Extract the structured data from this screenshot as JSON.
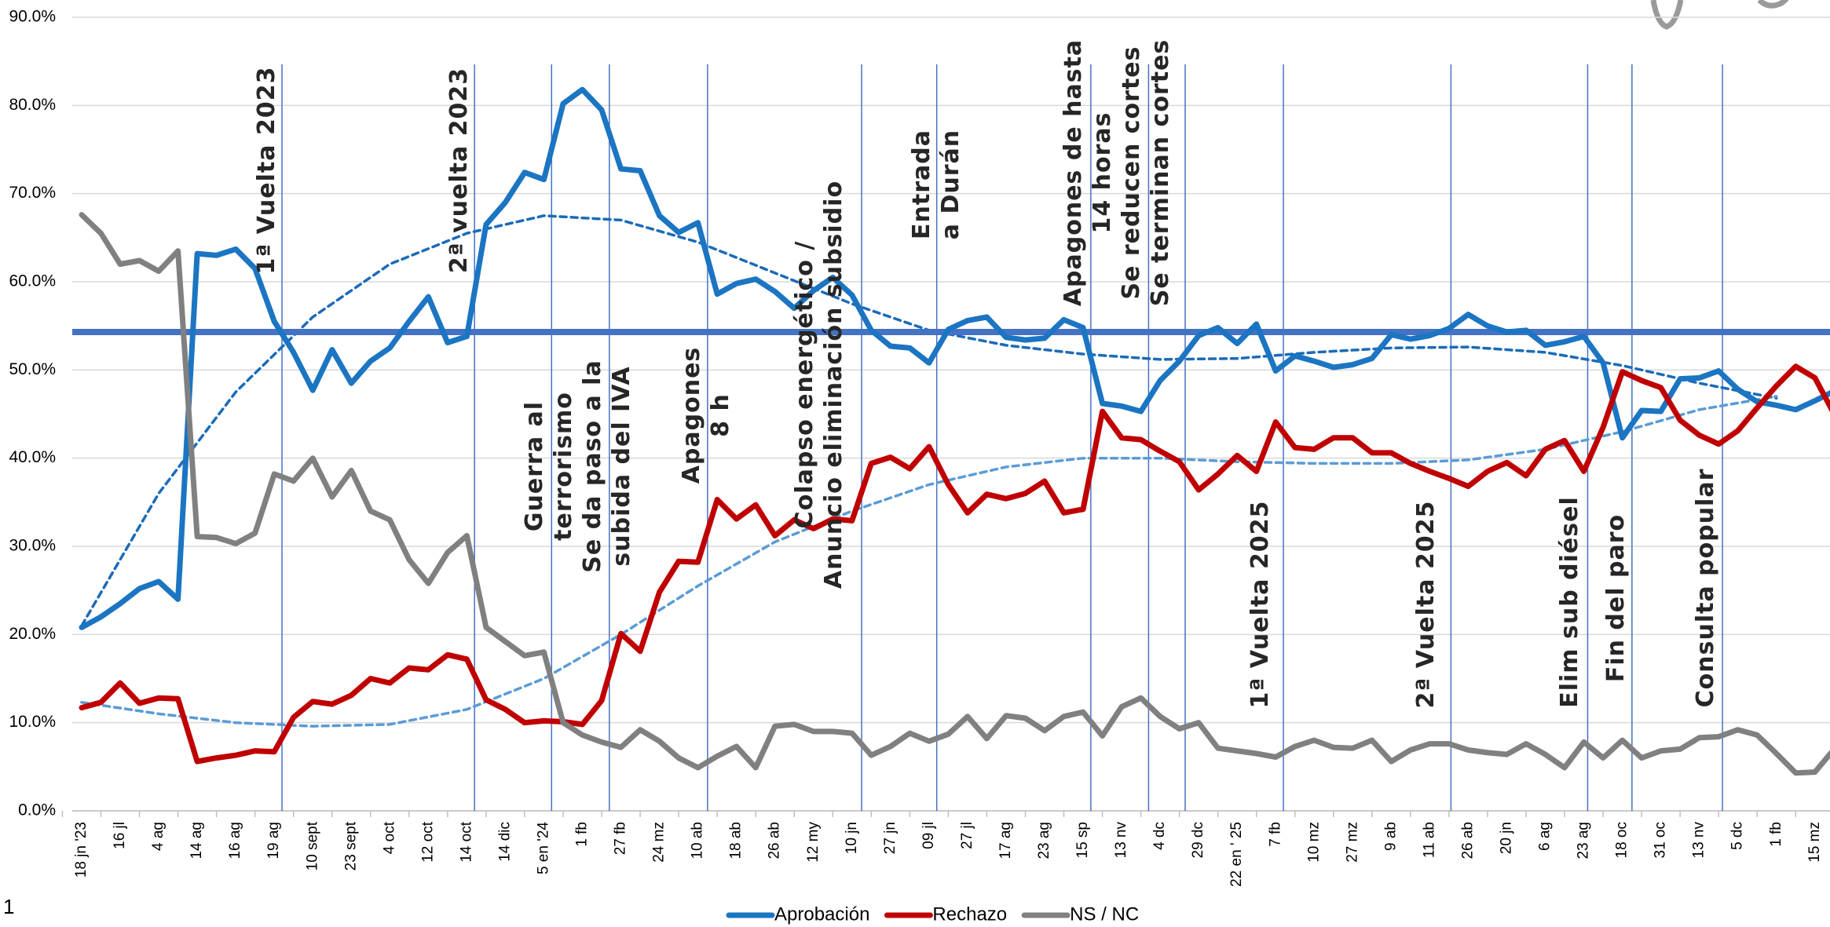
{
  "chart_data": {
    "type": "line",
    "categories": [
      "18 jn '23",
      null,
      "16 jl",
      null,
      "4 ag",
      null,
      "14 ag",
      null,
      "16 ag",
      null,
      "19 ag",
      null,
      "10 sept",
      null,
      "23 sept",
      null,
      "4 oct",
      null,
      "12 oct",
      null,
      "14 oct",
      null,
      "14 dic",
      null,
      "5 en '24",
      null,
      "1 fb",
      null,
      "27 fb",
      null,
      "24 mz",
      null,
      "10 ab",
      null,
      "18 ab",
      null,
      "26 ab",
      null,
      "12 my",
      null,
      "10 jn",
      null,
      "27 jn",
      null,
      "09 jl",
      null,
      "27 jl",
      null,
      "17 ag",
      null,
      "23 ag",
      null,
      "15 sp",
      null,
      "13 nv",
      null,
      "4 dc",
      null,
      "29 dc",
      null,
      "22 en ' 25",
      null,
      "7 fb",
      null,
      "10 mz",
      null,
      "27 mz",
      null,
      "9 ab",
      null,
      "11 ab",
      null,
      "26 ab",
      null,
      "20 jn",
      null,
      "6 ag",
      null,
      "23 ag",
      null,
      "18 oc",
      null,
      "31 oc",
      null,
      "13 nv",
      null,
      "5 dc",
      null,
      "1 fb",
      null,
      "15 mz",
      null
    ],
    "series": [
      {
        "name": "Aprobación",
        "color": "#1b75c2",
        "values": [
          20.8,
          22,
          23.5,
          25.2,
          26,
          24,
          63.2,
          63,
          63.7,
          61.5,
          55.5,
          52,
          47.7,
          52.3,
          48.5,
          51,
          52.5,
          55.5,
          58.3,
          53.1,
          53.8,
          66.5,
          69,
          72.4,
          71.6,
          80.2,
          81.8,
          79.5,
          72.8,
          72.6,
          67.5,
          65.6,
          66.7,
          58.6,
          59.8,
          60.3,
          58.9,
          57,
          59,
          60.5,
          58.5,
          54.5,
          52.7,
          52.5,
          50.8,
          54.6,
          55.6,
          56,
          53.7,
          53.4,
          53.6,
          55.7,
          54.8,
          46.2,
          45.9,
          45.3,
          48.8,
          51,
          53.9,
          54.8,
          53,
          55.2,
          49.9,
          51.6,
          51,
          50.3,
          50.6,
          51.3,
          54,
          53.5,
          53.9,
          54.7,
          56.3,
          55,
          54.3,
          54.5,
          52.8,
          53.2,
          53.8,
          50.8,
          42.3,
          45.4,
          45.3,
          49,
          49.1,
          49.9,
          47.8,
          46.4,
          46,
          45.5,
          46.5,
          47.6
        ]
      },
      {
        "name": "Rechazo",
        "color": "#c00000",
        "values": [
          11.7,
          12.3,
          14.5,
          12.2,
          12.8,
          12.7,
          5.6,
          6,
          6.3,
          6.8,
          6.7,
          10.6,
          12.4,
          12.1,
          13.1,
          15,
          14.5,
          16.2,
          16,
          17.7,
          17.2,
          12.6,
          11.5,
          10,
          10.2,
          10.1,
          9.8,
          12.5,
          20.1,
          18.1,
          24.8,
          28.3,
          28.2,
          35.3,
          33.1,
          34.7,
          31.2,
          33,
          32,
          33.1,
          32.9,
          39.4,
          40.1,
          38.8,
          41.3,
          37,
          33.8,
          35.9,
          35.4,
          36,
          37.4,
          33.8,
          34.2,
          45.3,
          42.3,
          42.1,
          40.8,
          39.6,
          36.4,
          38.2,
          40.3,
          38.5,
          44.1,
          41.2,
          41,
          42.3,
          42.3,
          40.6,
          40.6,
          39.4,
          38.5,
          37.7,
          36.8,
          38.5,
          39.5,
          38,
          41,
          42,
          38.5,
          43.5,
          49.8,
          48.8,
          48,
          44.3,
          42.6,
          41.6,
          43.1,
          45.7,
          48.2,
          50.4,
          49.1,
          45
        ]
      },
      {
        "name": "NS / NC",
        "color": "#808080",
        "values": [
          67.6,
          65.5,
          62,
          62.4,
          61.2,
          63.5,
          31.1,
          31,
          30.3,
          31.5,
          38.2,
          37.4,
          40,
          35.6,
          38.6,
          34,
          33,
          28.5,
          25.8,
          29.3,
          31.2,
          20.8,
          19.2,
          17.6,
          18,
          10,
          8.6,
          7.8,
          7.2,
          9.2,
          7.9,
          6,
          4.9,
          6.2,
          7.3,
          4.9,
          9.6,
          9.8,
          9,
          9,
          8.8,
          6.3,
          7.3,
          8.8,
          7.9,
          8.7,
          10.7,
          8.2,
          10.8,
          10.5,
          9.1,
          10.7,
          11.2,
          8.5,
          11.8,
          12.8,
          10.7,
          9.3,
          10,
          7.1,
          6.8,
          6.5,
          6.1,
          7.3,
          8,
          7.2,
          7.1,
          8,
          5.6,
          6.9,
          7.6,
          7.6,
          6.9,
          6.6,
          6.4,
          7.6,
          6.4,
          4.9,
          7.8,
          6,
          8,
          6,
          6.8,
          7,
          8.3,
          8.4,
          9.2,
          8.6,
          6.5,
          4.3,
          4.4,
          7
        ]
      }
    ],
    "trends": [
      {
        "color": "#1b6bb8",
        "x": [
          0,
          4,
          8,
          12,
          16,
          20,
          24,
          28,
          32,
          36,
          40,
          44,
          48,
          52,
          56,
          60,
          64,
          68,
          72,
          76,
          80,
          84,
          88
        ],
        "values": [
          21,
          36,
          47.5,
          56,
          62,
          65.5,
          67.5,
          67,
          64.5,
          61,
          57.5,
          54.5,
          52.8,
          51.8,
          51.2,
          51.3,
          52,
          52.5,
          52.6,
          52,
          50.5,
          48.5,
          46.8
        ]
      },
      {
        "color": "#5b9bd5",
        "x": [
          0,
          4,
          8,
          12,
          16,
          20,
          24,
          28,
          32,
          36,
          40,
          44,
          48,
          52,
          56,
          60,
          64,
          68,
          72,
          76,
          80,
          84,
          88
        ],
        "values": [
          12.3,
          11,
          10,
          9.6,
          9.8,
          11.5,
          15,
          20,
          25.5,
          30.5,
          34,
          37,
          39,
          40,
          40,
          39.6,
          39.4,
          39.4,
          39.8,
          41,
          43,
          45.5,
          47
        ]
      }
    ],
    "reference_line": {
      "value": 54.3,
      "color": "#4472c4"
    },
    "event_lines": [
      10.4,
      20.4,
      24.4,
      27.4,
      32.5,
      40.5,
      44.4,
      52.4,
      55.4,
      57.3,
      62.4,
      71.1,
      78.2,
      80.5,
      85.2
    ],
    "annotations": [
      {
        "lines": [
          "1ª Vuelta 2023"
        ]
      },
      {
        "lines": [
          "2ª vuelta 2023"
        ]
      },
      {
        "lines": [
          "Guerra al",
          "terrorismo",
          "Se da paso a la",
          "subida del IVA"
        ]
      },
      {
        "lines": [
          "Apagones",
          "8 h"
        ]
      },
      {
        "lines": [
          "Colapso energético /",
          "Anuncio eliminación subsidio"
        ]
      },
      {
        "lines": [
          "Entrada",
          "a Durán"
        ]
      },
      {
        "lines": [
          "Apagones de hasta",
          "14 horas",
          "Se reducen cortes",
          "Se terminan cortes"
        ]
      },
      {
        "lines": [
          "1ª Vuelta 2025"
        ]
      },
      {
        "lines": [
          "2ª Vuelta 2025"
        ]
      },
      {
        "lines": [
          "Elim sub diésel"
        ]
      },
      {
        "lines": [
          "Fin del paro"
        ]
      },
      {
        "lines": [
          "Consulta popular"
        ]
      }
    ],
    "ylim": [
      0,
      90
    ],
    "yticks": [
      {
        "value": 0,
        "label": "0.0%"
      },
      {
        "value": 10,
        "label": "10.0%"
      },
      {
        "value": 20,
        "label": "20.0%"
      },
      {
        "value": 30,
        "label": "30.0%"
      },
      {
        "value": 40,
        "label": "40.0%"
      },
      {
        "value": 50,
        "label": "50.0%"
      },
      {
        "value": 60,
        "label": "60.0%"
      },
      {
        "value": 70,
        "label": "70.0%"
      },
      {
        "value": 80,
        "label": "80.0%"
      },
      {
        "value": 90,
        "label": "90.0%"
      }
    ],
    "grid": true,
    "legend": "bottom",
    "footnote": "1"
  }
}
